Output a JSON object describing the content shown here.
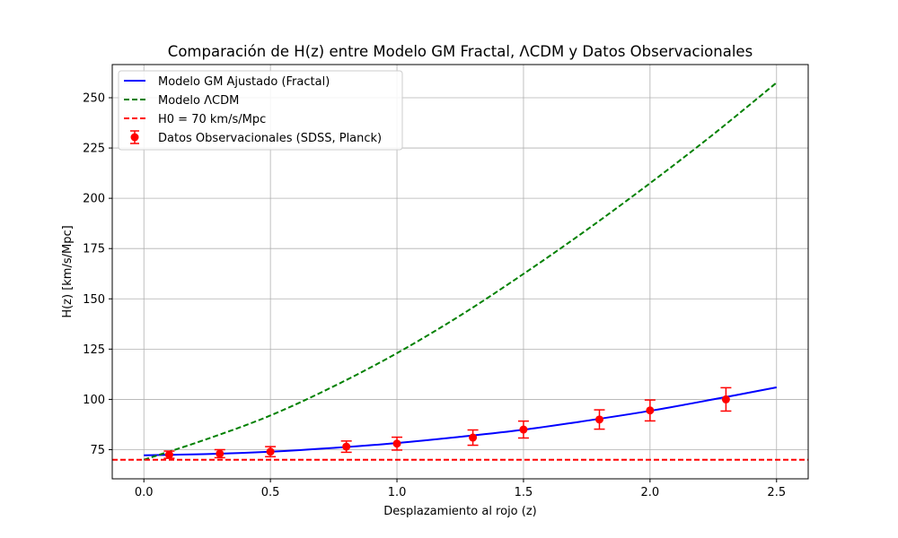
{
  "chart_data": {
    "type": "line",
    "title": "Comparación de H(z) entre Modelo GM Fractal, ΛCDM y Datos Observacionales",
    "xlabel": "Desplazamiento al rojo (z)",
    "ylabel": "H(z) [km/s/Mpc]",
    "xlim": [
      -0.125,
      2.625
    ],
    "ylim": [
      60.5,
      266.5
    ],
    "xticks": [
      0.0,
      0.5,
      1.0,
      1.5,
      2.0,
      2.5
    ],
    "xtick_labels": [
      "0.0",
      "0.5",
      "1.0",
      "1.5",
      "2.0",
      "2.5"
    ],
    "yticks": [
      75,
      100,
      125,
      150,
      175,
      200,
      225,
      250
    ],
    "ytick_labels": [
      "75",
      "100",
      "125",
      "150",
      "175",
      "200",
      "225",
      "250"
    ],
    "grid": true,
    "legend_position": "upper-left",
    "series": [
      {
        "name": "Modelo GM Ajustado (Fractal)",
        "kind": "line",
        "style": "solid",
        "color": "#0000ff",
        "x": [
          0.0,
          0.25,
          0.5,
          0.75,
          1.0,
          1.25,
          1.5,
          1.75,
          2.0,
          2.25,
          2.5
        ],
        "y": [
          72.2,
          72.8,
          74.0,
          75.9,
          78.3,
          81.4,
          84.9,
          89.4,
          94.3,
          100.0,
          106.0
        ]
      },
      {
        "name": "Modelo ΛCDM",
        "kind": "line",
        "style": "dashed",
        "color": "#008000",
        "x": [
          0.0,
          0.25,
          0.5,
          0.75,
          1.0,
          1.25,
          1.5,
          1.75,
          2.0,
          2.25,
          2.5
        ],
        "y": [
          70.0,
          80.3,
          92.0,
          106.5,
          123.0,
          141.7,
          162.4,
          184.3,
          207.5,
          231.8,
          257.5
        ]
      },
      {
        "name": "H0 = 70 km/s/Mpc",
        "kind": "hline",
        "style": "dashed",
        "color": "#ff0000",
        "y": 70
      },
      {
        "name": "Datos Observacionales (SDSS, Planck)",
        "kind": "errorbar",
        "color": "#ff0000",
        "x": [
          0.1,
          0.3,
          0.5,
          0.8,
          1.0,
          1.3,
          1.5,
          1.8,
          2.0,
          2.3
        ],
        "y": [
          72.5,
          73.0,
          74.0,
          76.5,
          78.0,
          81.0,
          85.0,
          90.0,
          94.5,
          100.0
        ],
        "yerr": [
          1.8,
          2.0,
          2.5,
          2.8,
          3.2,
          3.8,
          4.2,
          4.8,
          5.2,
          5.8
        ]
      }
    ]
  }
}
